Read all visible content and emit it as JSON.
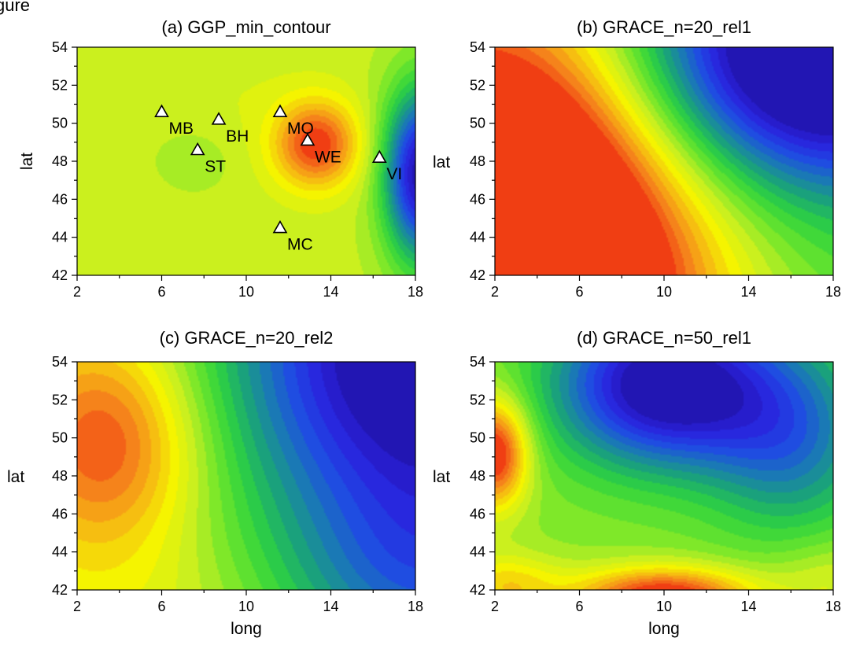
{
  "figure_fragment": "gure",
  "chart_data": [
    {
      "type": "heatmap",
      "id": "a",
      "title": "(a) GGP_min_contour",
      "xlabel": "",
      "ylabel": "lat",
      "xlim": [
        2,
        18
      ],
      "ylim": [
        42,
        54
      ],
      "xticks": [
        2,
        6,
        10,
        14,
        18
      ],
      "yticks": [
        42,
        44,
        46,
        48,
        50,
        52,
        54
      ],
      "colormap": [
        "#1f13a6",
        "#2a22dd",
        "#1f4ae4",
        "#1a7ab4",
        "#1aa676",
        "#2fd33f",
        "#6fe62a",
        "#c6ef22",
        "#f5f500",
        "#f6ba12",
        "#f57a1c",
        "#ee2c10"
      ],
      "value_range": [
        -1,
        1
      ],
      "background_level": 0.28,
      "field": [
        {
          "long": 13.3,
          "lat": 48.9,
          "amplitude": 0.72,
          "sigma_long": 1.4,
          "sigma_lat": 1.6
        },
        {
          "long": 18.3,
          "lat": 47.3,
          "amplitude": -1.28,
          "sigma_long": 1.25,
          "sigma_lat": 3.2
        },
        {
          "long": 7.4,
          "lat": 48.0,
          "amplitude": -0.1,
          "sigma_long": 1.3,
          "sigma_lat": 1.3
        },
        {
          "long": 8.5,
          "lat": 51.5,
          "amplitude": 0.05,
          "sigma_long": 3.0,
          "sigma_lat": 2.0
        },
        {
          "long": 5.5,
          "lat": 44.5,
          "amplitude": 0.03,
          "sigma_long": 3.0,
          "sigma_lat": 2.0
        }
      ],
      "stations": [
        {
          "code": "MB",
          "long": 6.0,
          "lat": 50.6
        },
        {
          "code": "BH",
          "long": 8.7,
          "lat": 50.2
        },
        {
          "code": "ST",
          "long": 7.7,
          "lat": 48.6
        },
        {
          "code": "MO",
          "long": 11.6,
          "lat": 50.6
        },
        {
          "code": "WE",
          "long": 12.9,
          "lat": 49.1
        },
        {
          "code": "VI",
          "long": 16.3,
          "lat": 48.2
        },
        {
          "code": "MC",
          "long": 11.6,
          "lat": 44.5
        }
      ]
    },
    {
      "type": "heatmap",
      "id": "b",
      "title": "(b) GRACE_n=20_rel1",
      "xlabel": "",
      "ylabel": "lat",
      "xlim": [
        2,
        18
      ],
      "ylim": [
        42,
        54
      ],
      "xticks": [
        2,
        6,
        10,
        14,
        18
      ],
      "yticks": [
        42,
        44,
        46,
        48,
        50,
        52,
        54
      ],
      "colormap": [
        "#1f13a6",
        "#2a22dd",
        "#1f4ae4",
        "#1a7ab4",
        "#1aa676",
        "#2fd33f",
        "#6fe62a",
        "#c6ef22",
        "#f5f500",
        "#f6ba12",
        "#f57a1c",
        "#ee2c10"
      ],
      "value_range": [
        -1,
        1
      ],
      "background_level": 0.0,
      "field": [
        {
          "long": 2.0,
          "lat": 42.0,
          "amplitude": 2.15,
          "sigma_long": 6.8,
          "sigma_lat": 9.5
        },
        {
          "long": 17.0,
          "lat": 53.5,
          "amplitude": -1.5,
          "sigma_long": 6.0,
          "sigma_lat": 4.8
        }
      ],
      "stations": []
    },
    {
      "type": "heatmap",
      "id": "c",
      "title": "(c) GRACE_n=20_rel2",
      "xlabel": "",
      "ylabel": "lat",
      "xlim": [
        2,
        18
      ],
      "ylim": [
        42,
        54
      ],
      "xticks": [
        2,
        6,
        10,
        14,
        18
      ],
      "yticks": [
        42,
        44,
        46,
        48,
        50,
        52,
        54
      ],
      "colormap": [
        "#1f13a6",
        "#2a22dd",
        "#1f4ae4",
        "#1a7ab4",
        "#1aa676",
        "#2fd33f",
        "#6fe62a",
        "#c6ef22",
        "#f5f500",
        "#f6ba12",
        "#f57a1c",
        "#ee2c10"
      ],
      "value_range": [
        -1,
        1
      ],
      "background_level": 0.35,
      "field": [
        {
          "long": 3.5,
          "lat": 49.8,
          "amplitude": 0.65,
          "sigma_long": 3.0,
          "sigma_lat": 4.0
        },
        {
          "long": 18.5,
          "lat": 54.5,
          "amplitude": -1.55,
          "sigma_long": 6.8,
          "sigma_lat": 7.5
        },
        {
          "long": 18.5,
          "lat": 42.0,
          "amplitude": -0.55,
          "sigma_long": 5.0,
          "sigma_lat": 4.0
        },
        {
          "long": 5.0,
          "lat": 42.0,
          "amplitude": 0.05,
          "sigma_long": 4.0,
          "sigma_lat": 2.0
        }
      ],
      "stations": []
    },
    {
      "type": "heatmap",
      "id": "d",
      "title": "(d) GRACE_n=50_rel1",
      "xlabel": "long",
      "ylabel": "lat",
      "xlim": [
        2,
        18
      ],
      "ylim": [
        42,
        54
      ],
      "xticks": [
        2,
        6,
        10,
        14,
        18
      ],
      "yticks": [
        42,
        44,
        46,
        48,
        50,
        52,
        54
      ],
      "colormap": [
        "#1f13a6",
        "#2a22dd",
        "#1f4ae4",
        "#1a7ab4",
        "#1aa676",
        "#2fd33f",
        "#6fe62a",
        "#c6ef22",
        "#f5f500",
        "#f6ba12",
        "#f57a1c",
        "#ee2c10"
      ],
      "value_range": [
        -1,
        1
      ],
      "background_level": 0.15,
      "field": [
        {
          "long": 10.0,
          "lat": 52.8,
          "amplitude": -1.25,
          "sigma_long": 3.6,
          "sigma_lat": 3.0
        },
        {
          "long": 16.0,
          "lat": 50.0,
          "amplitude": -0.6,
          "sigma_long": 2.8,
          "sigma_lat": 3.5
        },
        {
          "long": 2.0,
          "lat": 49.2,
          "amplitude": 0.95,
          "sigma_long": 1.1,
          "sigma_lat": 2.0
        },
        {
          "long": 10.0,
          "lat": 41.6,
          "amplitude": 0.95,
          "sigma_long": 3.0,
          "sigma_lat": 1.1
        },
        {
          "long": 2.5,
          "lat": 42.2,
          "amplitude": 0.4,
          "sigma_long": 1.8,
          "sigma_lat": 1.2
        },
        {
          "long": 18.0,
          "lat": 42.5,
          "amplitude": 0.2,
          "sigma_long": 2.0,
          "sigma_lat": 1.5
        }
      ],
      "stations": []
    }
  ],
  "shared_xlabel_bottom_left": "long"
}
